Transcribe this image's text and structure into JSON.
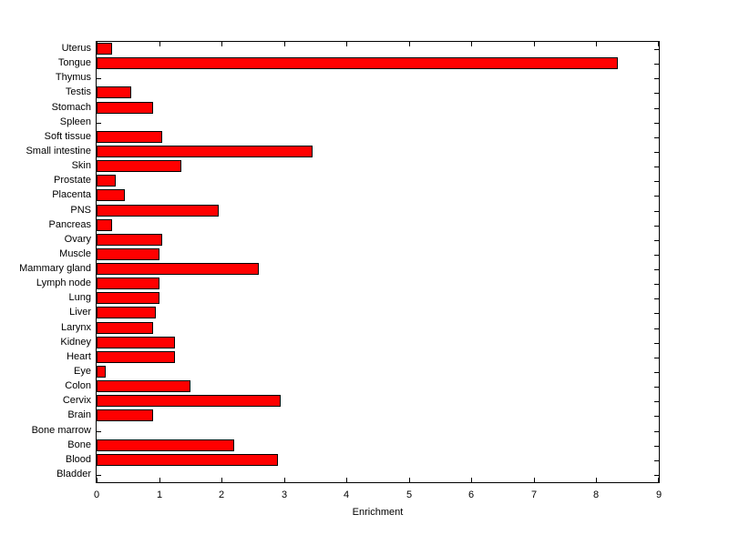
{
  "figure": {
    "background": "#FFFFFF",
    "plot_background": "#FFFFFF",
    "axis_color": "#000000"
  },
  "chart_data": {
    "type": "bar",
    "orientation": "horizontal",
    "title": "",
    "xlabel": "Enrichment",
    "ylabel": "",
    "xlim": [
      0,
      9
    ],
    "x_ticks": [
      0,
      1,
      2,
      3,
      4,
      5,
      6,
      7,
      8,
      9
    ],
    "grid": false,
    "legend": null,
    "bar_color": "#FF0000",
    "bar_edge_color": "#000000",
    "categories_top_to_bottom": [
      "Uterus",
      "Tongue",
      "Thymus",
      "Testis",
      "Stomach",
      "Spleen",
      "Soft tissue",
      "Small intestine",
      "Skin",
      "Prostate",
      "Placenta",
      "PNS",
      "Pancreas",
      "Ovary",
      "Muscle",
      "Mammary gland",
      "Lymph node",
      "Lung",
      "Liver",
      "Larynx",
      "Kidney",
      "Heart",
      "Eye",
      "Colon",
      "Cervix",
      "Brain",
      "Bone marrow",
      "Bone",
      "Blood",
      "Bladder"
    ],
    "values": [
      0.25,
      8.35,
      0,
      0.55,
      0.9,
      0,
      1.05,
      3.45,
      1.35,
      0.3,
      0.45,
      1.95,
      0.25,
      1.05,
      1.0,
      2.6,
      1.0,
      1.0,
      0.95,
      0.9,
      1.25,
      1.25,
      0.15,
      1.5,
      2.95,
      0.9,
      0,
      2.2,
      2.9,
      0
    ]
  }
}
